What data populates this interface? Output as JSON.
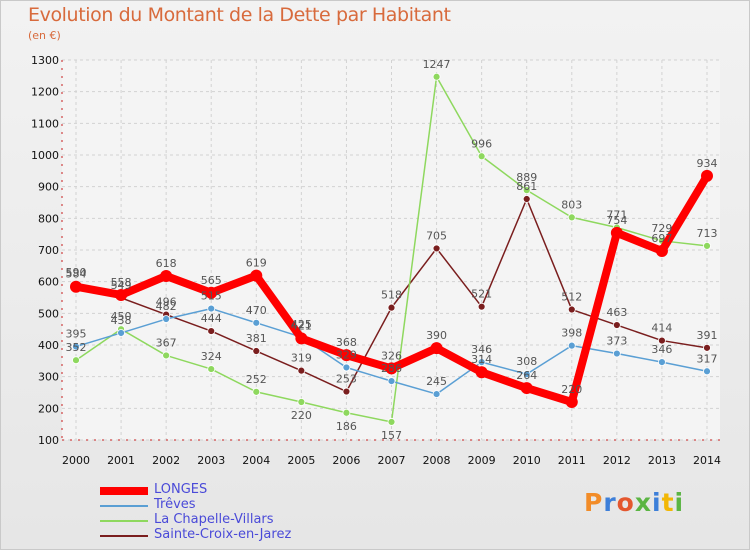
{
  "title": "Evolution du Montant de la Dette par Habitant",
  "unit": "(en €)",
  "logo": "Proxiti",
  "chart_data": {
    "type": "line",
    "x": [
      2000,
      2001,
      2002,
      2003,
      2004,
      2005,
      2006,
      2007,
      2008,
      2009,
      2010,
      2011,
      2012,
      2013,
      2014
    ],
    "ylim": [
      100,
      1300
    ],
    "yticks": [
      100,
      200,
      300,
      400,
      500,
      600,
      700,
      800,
      900,
      1000,
      1100,
      1200,
      1300
    ],
    "grid": true,
    "legend_position": "bottom-left",
    "series": [
      {
        "name": "LONGES",
        "color": "#ff0000",
        "values": [
          584,
          558,
          618,
          565,
          619,
          421,
          368,
          326,
          390,
          314,
          264,
          220,
          754,
          697,
          934
        ]
      },
      {
        "name": "Trêves",
        "color": "#5a9fd4",
        "values": [
          395,
          438,
          482,
          515,
          470,
          425,
          329,
          286,
          245,
          346,
          308,
          398,
          373,
          346,
          317
        ]
      },
      {
        "name": "La Chapelle-Villars",
        "color": "#8ed85e",
        "values": [
          352,
          450,
          367,
          324,
          252,
          220,
          186,
          157,
          1247,
          996,
          889,
          803,
          771,
          729,
          713
        ]
      },
      {
        "name": "Sainte-Croix-en-Jarez",
        "color": "#7a1e1e",
        "values": [
          590,
          549,
          496,
          444,
          381,
          319,
          253,
          518,
          705,
          521,
          861,
          512,
          463,
          414,
          391
        ]
      }
    ]
  }
}
